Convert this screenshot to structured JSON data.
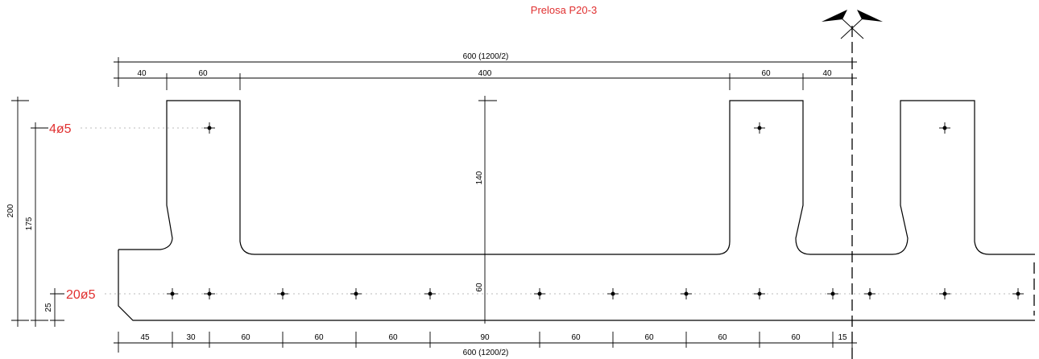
{
  "title": "Prelosa P20-3",
  "rebar_labels": {
    "top": "4ø5",
    "bottom": "20ø5"
  },
  "top_dims": {
    "overall": "600 (1200/2)",
    "segments": [
      "40",
      "60",
      "400",
      "60",
      "40"
    ]
  },
  "bottom_dims": {
    "overall": "600 (1200/2)",
    "segments": [
      "45",
      "30",
      "60",
      "60",
      "60",
      "90",
      "60",
      "60",
      "60",
      "60",
      "15"
    ]
  },
  "left_dims": {
    "total": "200",
    "to_top_bar": "175",
    "to_bottom_bar": "25"
  },
  "middle_dims": {
    "rib": "140",
    "slab": "60"
  }
}
